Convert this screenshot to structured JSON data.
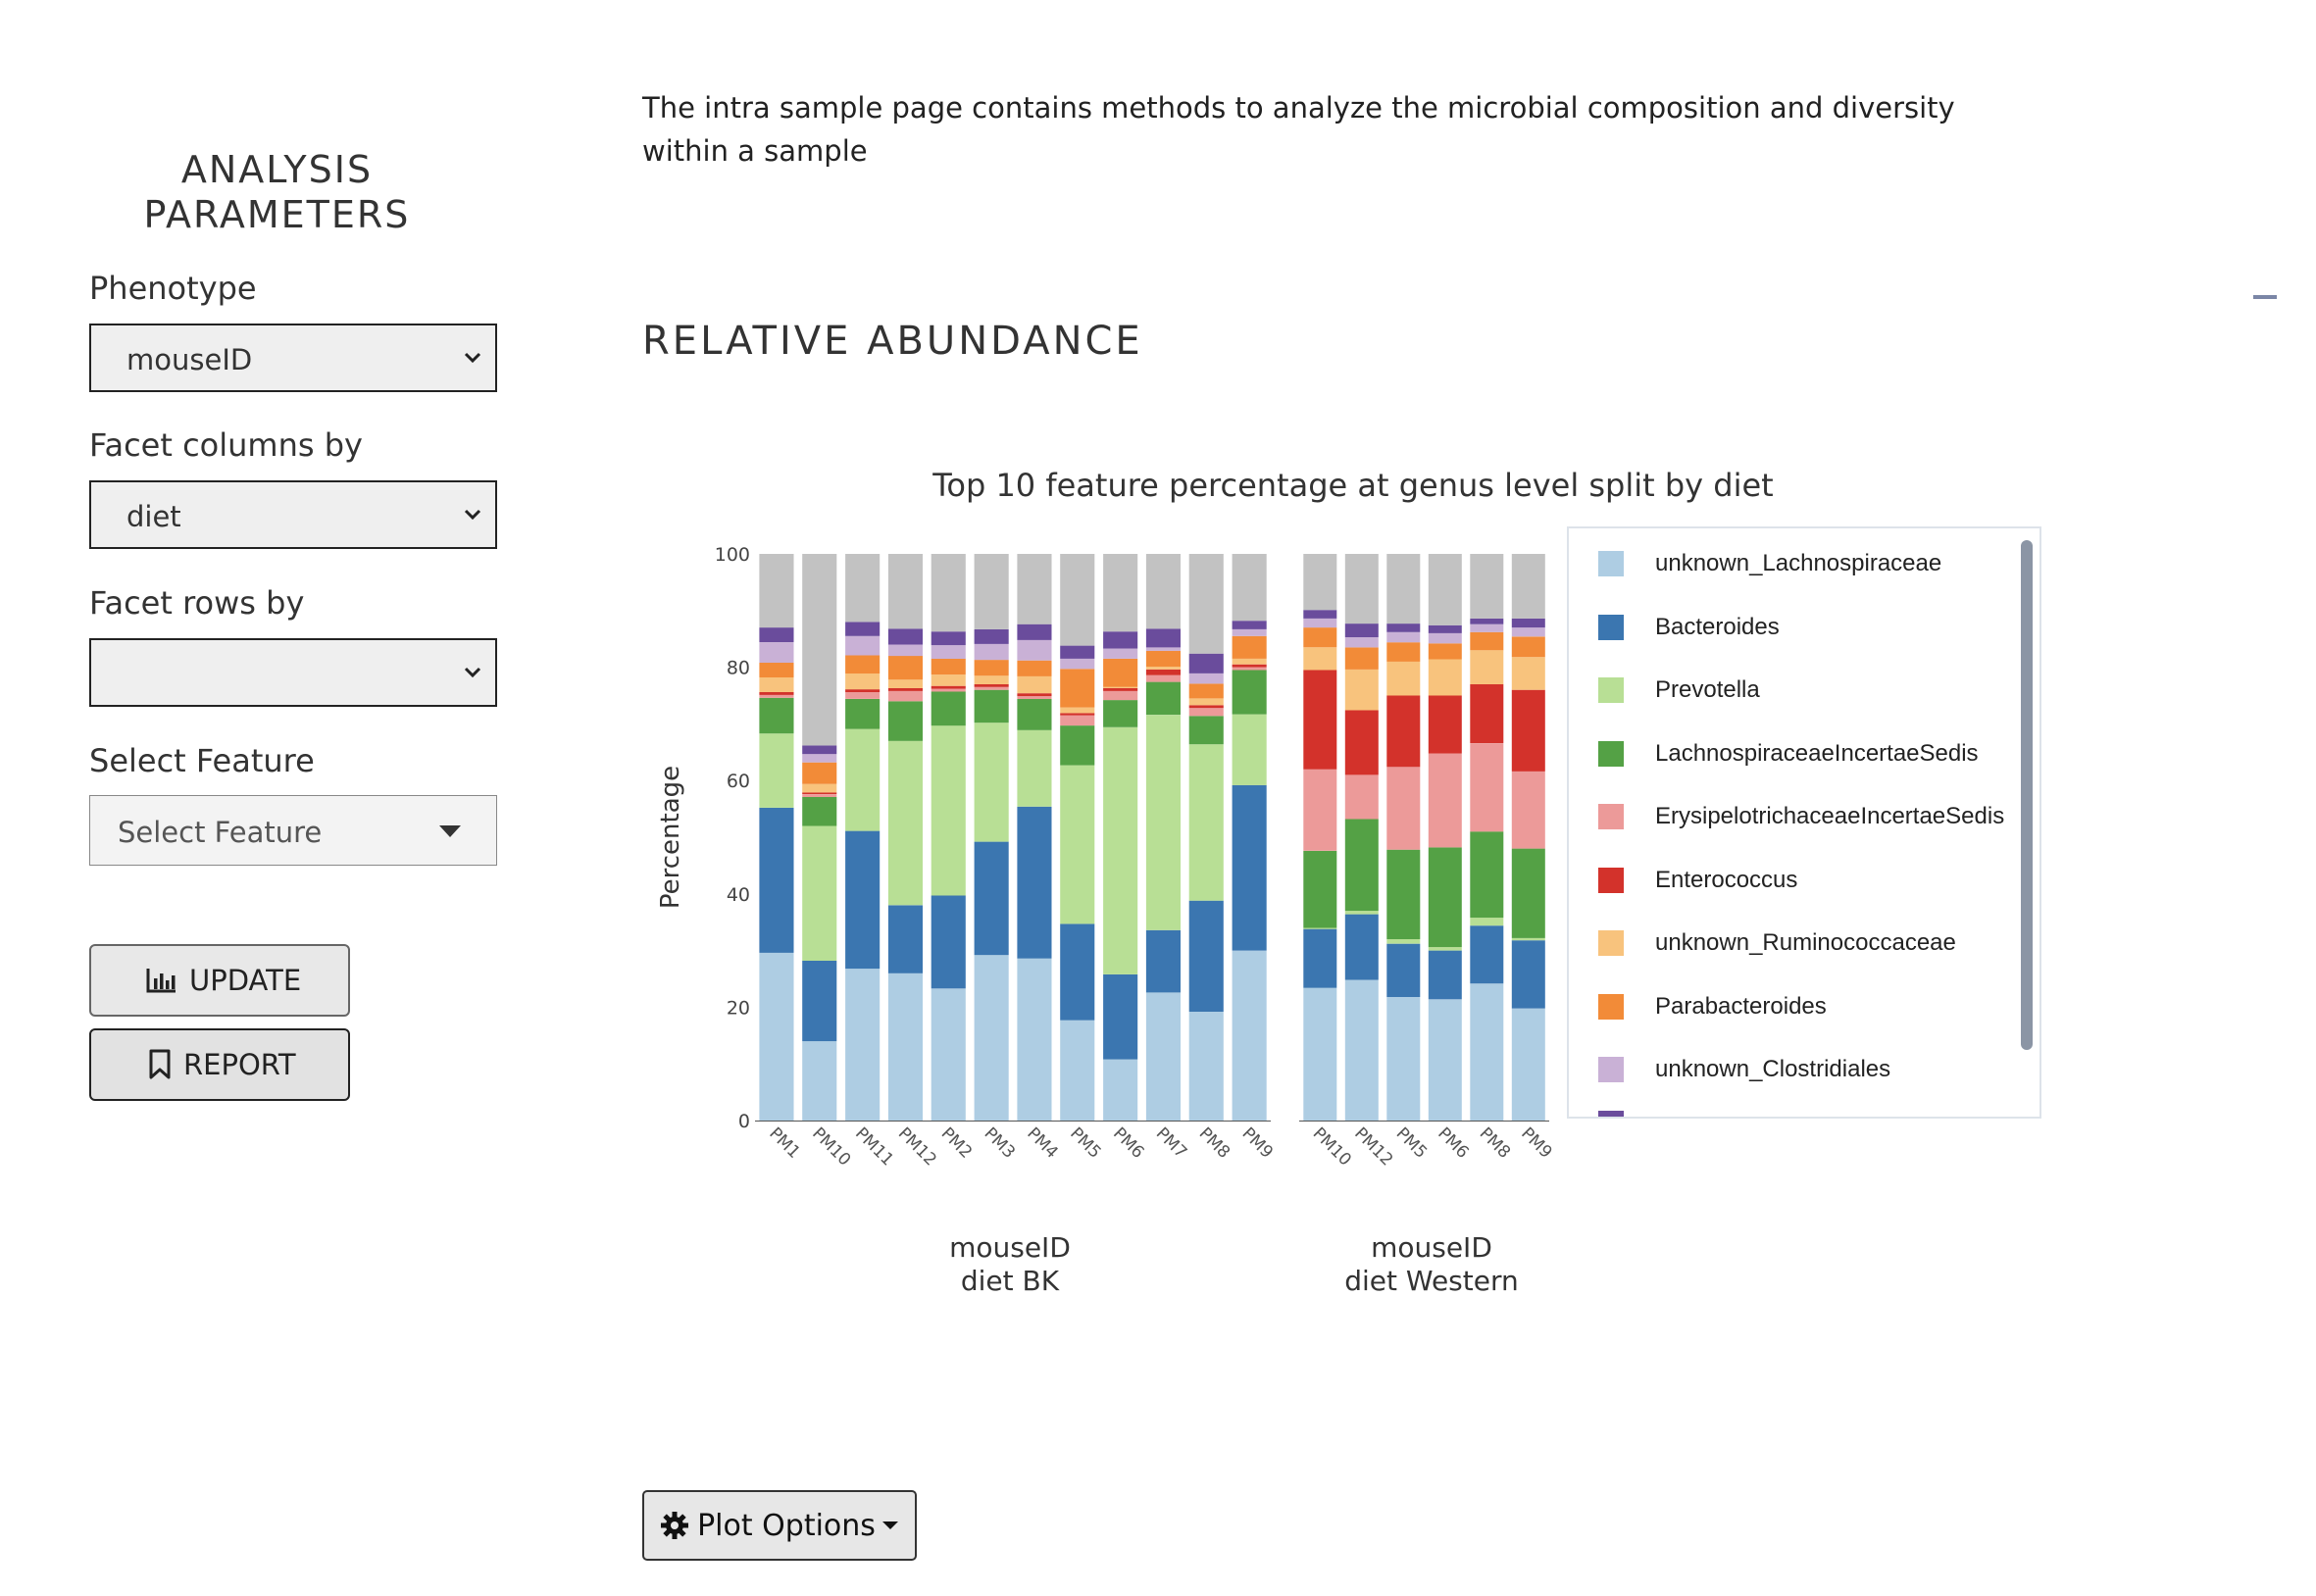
{
  "intro_text": "The intra sample page contains methods to analyze the microbial composition and diversity within a sample",
  "sidebar": {
    "title": "ANALYSIS PARAMETERS",
    "phenotype": {
      "label": "Phenotype",
      "value": "mouseID"
    },
    "facet_columns": {
      "label": "Facet columns by",
      "value": "diet"
    },
    "facet_rows": {
      "label": "Facet rows by",
      "value": ""
    },
    "select_feature": {
      "label": "Select Feature",
      "placeholder": "Select Feature"
    },
    "update_button": "UPDATE",
    "report_button": "REPORT"
  },
  "section_title": "RELATIVE ABUNDANCE",
  "plot_options_button": "Plot Options",
  "icons": [
    "chevron-down-icon",
    "caret-down-icon",
    "bar-chart-icon",
    "bookmark-icon",
    "gear-icon",
    "minus-icon"
  ],
  "chart_data": {
    "type": "bar",
    "stacked": true,
    "title": "Top 10 feature percentage at genus level split by diet",
    "ylabel": "Percentage",
    "ylim": [
      0,
      100
    ],
    "yticks": [
      0,
      20,
      40,
      60,
      80,
      100
    ],
    "legend_position": "right",
    "legend": [
      {
        "name": "unknown_Lachnospiraceae",
        "color": "#aecde3"
      },
      {
        "name": "Bacteroides",
        "color": "#3b76b0"
      },
      {
        "name": "Prevotella",
        "color": "#b8df95"
      },
      {
        "name": "LachnospiraceaeIncertaeSedis",
        "color": "#54a145"
      },
      {
        "name": "ErysipelotrichaceaeIncertaeSedis",
        "color": "#ec9a99"
      },
      {
        "name": "Enterococcus",
        "color": "#d3322b"
      },
      {
        "name": "unknown_Ruminococcaceae",
        "color": "#f8c37d"
      },
      {
        "name": "Parabacteroides",
        "color": "#f28b38"
      },
      {
        "name": "unknown_Clostridiales",
        "color": "#c9b1d6"
      }
    ],
    "stack_colors": [
      "#aecde3",
      "#3b76b0",
      "#b8df95",
      "#54a145",
      "#ec9a99",
      "#d3322b",
      "#f8c37d",
      "#f28b38",
      "#c9b1d6",
      "#6a4c9c",
      "#c2c2c2"
    ],
    "facets": [
      {
        "label_line1": "mouseID",
        "label_line2": "diet BK",
        "categories": [
          "PM1",
          "PM10",
          "PM11",
          "PM12",
          "PM2",
          "PM3",
          "PM4",
          "PM5",
          "PM6",
          "PM7",
          "PM8",
          "PM9"
        ],
        "bars": [
          [
            29.6,
            25.6,
            13.1,
            6.3,
            0.5,
            0.5,
            2.6,
            2.6,
            3.6,
            2.6,
            13.0
          ],
          [
            14.0,
            14.2,
            23.8,
            5.1,
            0.5,
            0.3,
            1.5,
            3.8,
            1.5,
            1.5,
            33.8
          ],
          [
            26.8,
            24.3,
            18.0,
            5.3,
            1.2,
            0.5,
            2.8,
            3.2,
            3.4,
            2.5,
            12.0
          ],
          [
            26.0,
            12.0,
            29.0,
            7.0,
            1.8,
            0.5,
            1.5,
            4.2,
            2.0,
            2.8,
            13.2
          ],
          [
            23.3,
            16.4,
            30.0,
            6.0,
            0.5,
            0.5,
            2.0,
            2.8,
            2.4,
            2.4,
            13.7
          ],
          [
            29.2,
            20.0,
            21.0,
            5.8,
            0.5,
            0.5,
            1.5,
            2.8,
            2.8,
            2.6,
            13.3
          ],
          [
            28.6,
            26.8,
            13.5,
            5.5,
            0.5,
            0.5,
            3.0,
            2.8,
            3.6,
            2.8,
            12.4
          ],
          [
            17.7,
            17.0,
            28.0,
            7.0,
            1.8,
            0.4,
            1.0,
            6.8,
            1.8,
            2.3,
            16.2
          ],
          [
            10.8,
            15.0,
            43.6,
            4.8,
            1.6,
            0.5,
            0.2,
            5.0,
            1.8,
            3.0,
            13.7
          ],
          [
            22.6,
            11.0,
            38.0,
            5.8,
            1.2,
            1.0,
            0.5,
            2.8,
            0.6,
            3.3,
            13.2
          ],
          [
            19.2,
            19.6,
            27.6,
            5.0,
            1.4,
            0.5,
            1.2,
            2.6,
            1.8,
            3.5,
            17.6
          ],
          [
            30.0,
            29.2,
            12.5,
            7.8,
            0.5,
            0.5,
            1.0,
            4.0,
            1.2,
            1.5,
            11.8
          ]
        ]
      },
      {
        "label_line1": "mouseID",
        "label_line2": "diet Western",
        "categories": [
          "PM10",
          "PM12",
          "PM5",
          "PM6",
          "PM8",
          "PM9"
        ],
        "bars": [
          [
            23.4,
            10.4,
            0.2,
            13.6,
            14.4,
            17.5,
            4.0,
            3.5,
            1.6,
            1.5,
            9.9
          ],
          [
            24.8,
            11.6,
            0.6,
            16.2,
            7.8,
            11.4,
            7.2,
            3.9,
            1.8,
            2.4,
            12.3
          ],
          [
            21.8,
            9.4,
            0.8,
            15.8,
            14.6,
            12.6,
            6.0,
            3.4,
            1.8,
            1.5,
            12.3
          ],
          [
            21.4,
            8.6,
            0.6,
            17.6,
            16.6,
            10.2,
            6.4,
            2.8,
            1.8,
            1.4,
            12.6
          ],
          [
            24.2,
            10.2,
            1.4,
            15.2,
            15.6,
            10.4,
            6.0,
            3.2,
            1.4,
            1.0,
            11.4
          ],
          [
            19.8,
            12.0,
            0.4,
            15.8,
            13.6,
            14.4,
            5.8,
            3.6,
            1.6,
            1.6,
            11.4
          ]
        ]
      }
    ]
  }
}
